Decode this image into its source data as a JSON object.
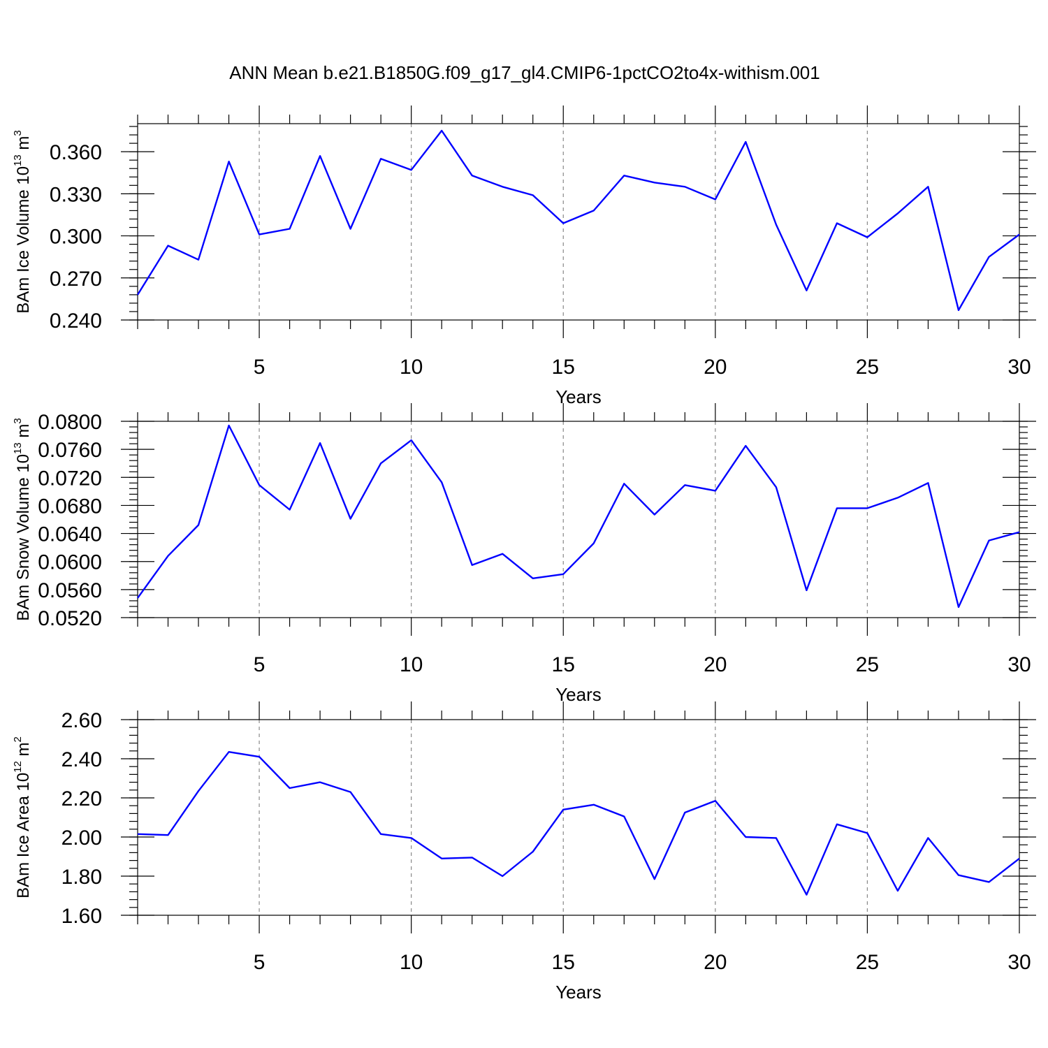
{
  "title": "ANN Mean b.e21.B1850G.f09_g17_gl4.CMIP6-1pctCO2to4x-withism.001",
  "colors": {
    "line": "#0000ff",
    "axis": "#000000",
    "grid": "#888888"
  },
  "chart_data": [
    {
      "type": "line",
      "ylabel": {
        "text": "BAm Ice Volume 10",
        "exp": "13",
        "unit": " m",
        "unit_exp": "3"
      },
      "xlabel": "Years",
      "xlim": [
        1,
        30
      ],
      "ylim": [
        0.24,
        0.38
      ],
      "yticks": [
        "0.240",
        "0.270",
        "0.300",
        "0.330",
        "0.360"
      ],
      "ytick_values": [
        0.24,
        0.27,
        0.3,
        0.33,
        0.36
      ],
      "yminor_step": 0.006,
      "xticks": [
        "5",
        "10",
        "15",
        "20",
        "25",
        "30"
      ],
      "xtick_values": [
        5,
        10,
        15,
        20,
        25,
        30
      ],
      "x": [
        1,
        2,
        3,
        4,
        5,
        6,
        7,
        8,
        9,
        10,
        11,
        12,
        13,
        14,
        15,
        16,
        17,
        18,
        19,
        20,
        21,
        22,
        23,
        24,
        25,
        26,
        27,
        28,
        29,
        30
      ],
      "values": [
        0.258,
        0.293,
        0.283,
        0.353,
        0.301,
        0.305,
        0.357,
        0.305,
        0.355,
        0.347,
        0.375,
        0.343,
        0.335,
        0.329,
        0.309,
        0.318,
        0.343,
        0.338,
        0.335,
        0.326,
        0.367,
        0.308,
        0.261,
        0.309,
        0.299,
        0.316,
        0.335,
        0.247,
        0.285,
        0.301
      ]
    },
    {
      "type": "line",
      "ylabel": {
        "text": "BAm Snow Volume 10",
        "exp": "13",
        "unit": " m",
        "unit_exp": "3"
      },
      "xlabel": "Years",
      "xlim": [
        1,
        30
      ],
      "ylim": [
        0.052,
        0.08
      ],
      "yticks": [
        "0.0520",
        "0.0560",
        "0.0600",
        "0.0640",
        "0.0680",
        "0.0720",
        "0.0760",
        "0.0800"
      ],
      "ytick_values": [
        0.052,
        0.056,
        0.06,
        0.064,
        0.068,
        0.072,
        0.076,
        0.08
      ],
      "yminor_step": 0.0008,
      "xticks": [
        "5",
        "10",
        "15",
        "20",
        "25",
        "30"
      ],
      "xtick_values": [
        5,
        10,
        15,
        20,
        25,
        30
      ],
      "x": [
        1,
        2,
        3,
        4,
        5,
        6,
        7,
        8,
        9,
        10,
        11,
        12,
        13,
        14,
        15,
        16,
        17,
        18,
        19,
        20,
        21,
        22,
        23,
        24,
        25,
        26,
        27,
        28,
        29,
        30
      ],
      "values": [
        0.0548,
        0.0608,
        0.0652,
        0.0794,
        0.0709,
        0.0674,
        0.0769,
        0.0661,
        0.074,
        0.0773,
        0.0713,
        0.0595,
        0.0611,
        0.0576,
        0.0582,
        0.0626,
        0.0711,
        0.0667,
        0.0709,
        0.0701,
        0.0765,
        0.0706,
        0.0559,
        0.0676,
        0.0676,
        0.0691,
        0.0712,
        0.0535,
        0.063,
        0.0642
      ]
    },
    {
      "type": "line",
      "ylabel": {
        "text": "BAm Ice Area 10",
        "exp": "12",
        "unit": " m",
        "unit_exp": "2"
      },
      "xlabel": "Years",
      "xlim": [
        1,
        30
      ],
      "ylim": [
        1.6,
        2.6
      ],
      "yticks": [
        "1.60",
        "1.80",
        "2.00",
        "2.20",
        "2.40",
        "2.60"
      ],
      "ytick_values": [
        1.6,
        1.8,
        2.0,
        2.2,
        2.4,
        2.6
      ],
      "yminor_step": 0.04,
      "xticks": [
        "5",
        "10",
        "15",
        "20",
        "25",
        "30"
      ],
      "xtick_values": [
        5,
        10,
        15,
        20,
        25,
        30
      ],
      "x": [
        1,
        2,
        3,
        4,
        5,
        6,
        7,
        8,
        9,
        10,
        11,
        12,
        13,
        14,
        15,
        16,
        17,
        18,
        19,
        20,
        21,
        22,
        23,
        24,
        25,
        26,
        27,
        28,
        29,
        30
      ],
      "values": [
        2.015,
        2.01,
        2.235,
        2.435,
        2.41,
        2.25,
        2.28,
        2.23,
        2.015,
        1.995,
        1.89,
        1.895,
        1.8,
        1.925,
        2.14,
        2.165,
        2.105,
        1.785,
        2.125,
        2.185,
        2.0,
        1.995,
        1.705,
        2.065,
        2.02,
        1.725,
        1.995,
        1.805,
        1.77,
        1.89
      ]
    }
  ]
}
